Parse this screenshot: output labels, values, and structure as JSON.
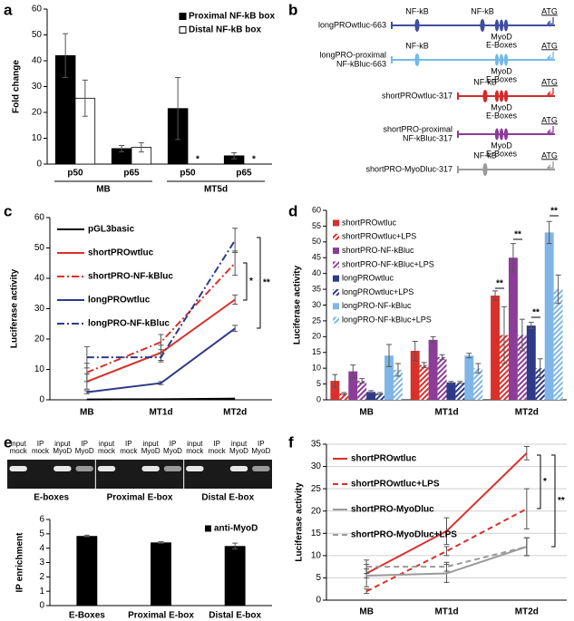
{
  "chart_data": [
    {
      "panel_label": "a",
      "type": "bar",
      "ylabel": "Fold change",
      "categories": [
        "p50",
        "p65",
        "p50",
        "p65"
      ],
      "group_labels": [
        "MB",
        "MT5d"
      ],
      "series": [
        {
          "name": "Proximal NF-kB box",
          "color": "#000000",
          "values": [
            42,
            6,
            21.5,
            3.2
          ],
          "errors": [
            8.5,
            1.2,
            12,
            1.2
          ]
        },
        {
          "name": "Distal NF-kB box",
          "color": "#ffffff",
          "values": [
            25.5,
            6.5,
            null,
            null
          ],
          "errors": [
            7,
            1.8,
            null,
            null
          ]
        }
      ],
      "ylim": [
        0,
        60
      ],
      "yticks": [
        0,
        10,
        20,
        30,
        40,
        50,
        60
      ],
      "grid": false,
      "annotations": [
        "*",
        "*"
      ]
    },
    {
      "panel_label": "c",
      "type": "line",
      "ylabel": "Luciferase activity",
      "categories": [
        "MB",
        "MT1d",
        "MT2d"
      ],
      "series": [
        {
          "name": "pGL3basic",
          "color": "#000000",
          "dash": "solid",
          "values": [
            0.1,
            0.2,
            0.4
          ],
          "errors": [
            null,
            null,
            null
          ]
        },
        {
          "name": "shortPROwtluc",
          "color": "#d9302b",
          "dash": "solid",
          "values": [
            6,
            15.5,
            33
          ],
          "errors": [
            2.5,
            2.5,
            1.5
          ]
        },
        {
          "name": "shortPRO-NF-kBluc",
          "color": "#d9302b",
          "dash": "dashdot",
          "values": [
            9,
            19,
            45
          ],
          "errors": [
            3,
            2.5,
            4
          ]
        },
        {
          "name": "longPROwtluc",
          "color": "#2e3a87",
          "dash": "solid",
          "values": [
            2.5,
            5.5,
            23.5
          ],
          "errors": [
            0.5,
            0.5,
            1
          ]
        },
        {
          "name": "longPRO-NF-kBluc",
          "color": "#2e3a87",
          "dash": "dashdot",
          "values": [
            14,
            14,
            52.5
          ],
          "errors": [
            3.5,
            1.5,
            4
          ]
        }
      ],
      "ylim": [
        0,
        60
      ],
      "yticks": [
        0,
        10,
        20,
        30,
        40,
        50,
        60
      ],
      "grid": false,
      "annotations": [
        "*",
        "**"
      ]
    },
    {
      "panel_label": "d",
      "type": "bar",
      "ylabel": "Luciferase activity",
      "categories": [
        "MB",
        "MT1d",
        "MT2d"
      ],
      "series": [
        {
          "name": "shortPROwtluc",
          "color": "#d9302b",
          "hatch": false,
          "values": [
            6,
            15.5,
            33
          ],
          "errors": [
            2,
            3,
            1.5
          ]
        },
        {
          "name": "shortPROwtluc+LPS",
          "color": "#d9302b",
          "hatch": true,
          "values": [
            2,
            11,
            20.5
          ],
          "errors": [
            0.3,
            0.8,
            9
          ]
        },
        {
          "name": "shortPRO-NF-kBluc",
          "color": "#8b3d97",
          "hatch": false,
          "values": [
            9,
            19,
            45
          ],
          "errors": [
            2,
            1,
            4.5
          ]
        },
        {
          "name": "shortPRO-NF-kBluc+LPS",
          "color": "#8b3d97",
          "hatch": true,
          "values": [
            6,
            13.5,
            20.5
          ],
          "errors": [
            0.7,
            0.8,
            5
          ]
        },
        {
          "name": "longPROwtluc",
          "color": "#2e3a87",
          "hatch": false,
          "values": [
            2.5,
            5.5,
            23.5
          ],
          "errors": [
            0.4,
            0.3,
            1
          ]
        },
        {
          "name": "longPROwtluc+LPS",
          "color": "#2e3a87",
          "hatch": true,
          "values": [
            2,
            5.5,
            10
          ],
          "errors": [
            0.3,
            0.3,
            3
          ]
        },
        {
          "name": "longPRO-NF-kBluc",
          "color": "#7fb6e6",
          "hatch": false,
          "values": [
            14,
            14,
            53
          ],
          "errors": [
            3.5,
            0.7,
            3.5
          ]
        },
        {
          "name": "longPRO-NF-kBluc+LPS",
          "color": "#7fb6e6",
          "hatch": true,
          "values": [
            9.5,
            10,
            35
          ],
          "errors": [
            2,
            1.5,
            4.5
          ]
        }
      ],
      "ylim": [
        0,
        60
      ],
      "yticks": [
        0,
        5,
        10,
        15,
        20,
        25,
        30,
        35,
        40,
        45,
        50,
        55,
        60
      ],
      "grid": false,
      "annotations": [
        "**",
        "**",
        "**",
        "**"
      ]
    },
    {
      "panel_label": "e",
      "type": "bar",
      "ylabel": "IP enrichment",
      "gel_lanes": [
        [
          "input",
          "mock"
        ],
        [
          "IP",
          "mock"
        ],
        [
          "input",
          "MyoD"
        ],
        [
          "IP",
          "MyoD"
        ],
        [
          "input",
          "mock"
        ],
        [
          "IP",
          "mock"
        ],
        [
          "input",
          "MyoD"
        ],
        [
          "IP",
          "MyoD"
        ],
        [
          "input",
          "mock"
        ],
        [
          "IP",
          "mock"
        ],
        [
          "input",
          "MyoD"
        ],
        [
          "IP",
          "MyoD"
        ]
      ],
      "gel_groups": [
        "E-boxes",
        "Proximal E-box",
        "Distal E-box"
      ],
      "categories": [
        "E-Boxes",
        "Proximal E-box",
        "Distal E-box"
      ],
      "series": [
        {
          "name": "anti-MyoD",
          "color": "#000000",
          "values": [
            4.85,
            4.4,
            4.15
          ],
          "errors": [
            0.05,
            0.05,
            0.2
          ]
        }
      ],
      "ylim": [
        0,
        6
      ],
      "yticks": [
        0,
        1,
        2,
        3,
        4,
        5,
        6
      ],
      "grid": false
    },
    {
      "panel_label": "f",
      "type": "line",
      "ylabel": "Luciferase activity",
      "categories": [
        "MB",
        "MT1d",
        "MT2d"
      ],
      "series": [
        {
          "name": "shortPROwtluc",
          "color": "#d9302b",
          "dash": "solid",
          "values": [
            6,
            15.5,
            33
          ],
          "errors": [
            1,
            3,
            1.5
          ]
        },
        {
          "name": "shortPROwtluc+LPS",
          "color": "#d9302b",
          "dash": "dashed",
          "values": [
            2,
            11,
            20.5
          ],
          "errors": [
            0.5,
            1,
            4.5
          ]
        },
        {
          "name": "shortPRO-MyoDluc",
          "color": "#9a9a9a",
          "dash": "solid",
          "values": [
            5.5,
            6,
            12
          ],
          "errors": [
            2.5,
            2,
            2
          ]
        },
        {
          "name": "shortPRO-MyoDluc+LPS",
          "color": "#9a9a9a",
          "dash": "dashed",
          "values": [
            7.5,
            7.5,
            12
          ],
          "errors": [
            1.5,
            1,
            2
          ]
        }
      ],
      "ylim": [
        0,
        35
      ],
      "yticks": [
        0,
        5,
        10,
        15,
        20,
        25,
        30,
        35
      ],
      "grid": true,
      "annotations": [
        "*",
        "**"
      ]
    }
  ],
  "diagram": {
    "panel_label": "b",
    "constructs": [
      {
        "name": [
          "longPROwtluc-663"
        ],
        "color": "#3f4ea0",
        "features": [
          {
            "kind": "nfkb",
            "label": [
              "NF-kB"
            ]
          },
          {
            "kind": "nfkb",
            "label": [
              "NF-kB"
            ]
          },
          {
            "kind": "ebox",
            "label": [
              "MyoD",
              "E-Boxes"
            ]
          },
          {
            "kind": "atg",
            "label": [
              "ATG"
            ]
          }
        ]
      },
      {
        "name": [
          "longPRO-proximal",
          "NF-kBluc-663"
        ],
        "color": "#74b9e8",
        "features": [
          {
            "kind": "nfkb",
            "label": [
              "NF-kB"
            ]
          },
          {
            "kind": "ebox",
            "label": [
              "MyoD",
              "E-Boxes"
            ]
          },
          {
            "kind": "atg",
            "label": [
              "ATG"
            ]
          }
        ]
      },
      {
        "name": [
          "shortPROwtluc-317"
        ],
        "color": "#d22b2b",
        "features": [
          {
            "kind": "nfkb",
            "label": [
              "NF-kB"
            ]
          },
          {
            "kind": "ebox",
            "label": [
              "MyoD",
              "E-Boxes"
            ]
          },
          {
            "kind": "atg",
            "label": [
              "ATG"
            ]
          }
        ]
      },
      {
        "name": [
          "shortPRO-proximal",
          "NF-kBluc-317"
        ],
        "color": "#8b3d97",
        "features": [
          {
            "kind": "ebox",
            "label": [
              "MyoD",
              "E-Boxes"
            ]
          },
          {
            "kind": "atg",
            "label": [
              "ATG"
            ]
          }
        ]
      },
      {
        "name": [
          "shortPRO-MyoDluc-317"
        ],
        "color": "#9a9a9a",
        "features": [
          {
            "kind": "nfkb",
            "label": [
              "NF-kB"
            ]
          },
          {
            "kind": "atg",
            "label": [
              "ATG"
            ]
          }
        ]
      }
    ]
  }
}
